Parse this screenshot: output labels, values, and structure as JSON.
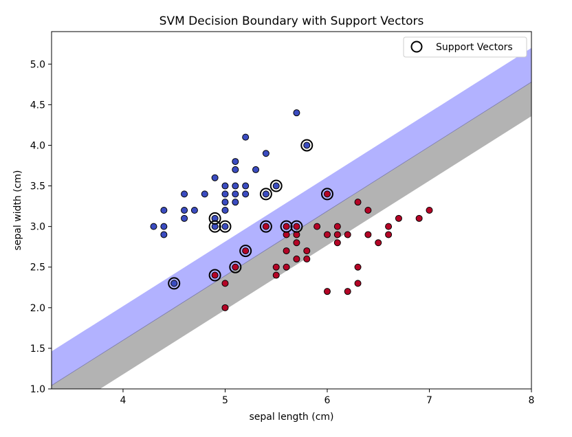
{
  "chart_data": {
    "type": "scatter",
    "title": "SVM Decision Boundary with Support Vectors",
    "xlabel": "sepal length (cm)",
    "ylabel": "sepal width (cm)",
    "xlim": [
      3.3,
      8.0
    ],
    "ylim": [
      1.0,
      5.4
    ],
    "xticks": [
      "4",
      "5",
      "6",
      "7",
      "8"
    ],
    "yticks": [
      "1.0",
      "1.5",
      "2.0",
      "2.5",
      "3.0",
      "3.5",
      "4.0",
      "4.5",
      "5.0"
    ],
    "grid": false,
    "legend": {
      "position": "top-right",
      "entries": [
        "Support Vectors"
      ]
    },
    "decision_regions": {
      "boundary_line": {
        "slope": 0.795,
        "intercept": -1.581
      },
      "margin_band_width": 0.42,
      "colors": {
        "class_0_margin": "#b2b2ff",
        "class_1_margin": "#b3b3b3",
        "background": "#ffffff"
      }
    },
    "colors": {
      "class_0": "#3b4cc0",
      "class_1": "#b40426",
      "edge": "#000000"
    },
    "series": [
      {
        "class": 0,
        "points": [
          [
            4.3,
            3.0
          ],
          [
            4.4,
            3.0
          ],
          [
            4.4,
            2.9
          ],
          [
            4.4,
            3.2
          ],
          [
            4.5,
            2.3
          ],
          [
            4.6,
            3.4
          ],
          [
            4.6,
            3.2
          ],
          [
            4.6,
            3.1
          ],
          [
            4.7,
            3.2
          ],
          [
            4.8,
            3.4
          ],
          [
            4.9,
            3.6
          ],
          [
            4.9,
            3.1
          ],
          [
            4.9,
            3.0
          ],
          [
            5.0,
            3.5
          ],
          [
            5.0,
            3.4
          ],
          [
            5.0,
            3.3
          ],
          [
            5.0,
            3.2
          ],
          [
            5.0,
            3.0
          ],
          [
            5.1,
            3.8
          ],
          [
            5.1,
            3.7
          ],
          [
            5.1,
            3.5
          ],
          [
            5.1,
            3.4
          ],
          [
            5.1,
            3.3
          ],
          [
            5.2,
            4.1
          ],
          [
            5.2,
            3.5
          ],
          [
            5.2,
            3.4
          ],
          [
            5.3,
            3.7
          ],
          [
            5.4,
            3.9
          ],
          [
            5.4,
            3.4
          ],
          [
            5.5,
            3.5
          ],
          [
            5.7,
            4.4
          ],
          [
            5.8,
            4.0
          ]
        ]
      },
      {
        "class": 1,
        "points": [
          [
            4.9,
            2.4
          ],
          [
            5.0,
            2.3
          ],
          [
            5.0,
            2.0
          ],
          [
            5.1,
            2.5
          ],
          [
            5.2,
            2.7
          ],
          [
            5.4,
            3.0
          ],
          [
            5.5,
            2.5
          ],
          [
            5.5,
            2.4
          ],
          [
            5.6,
            3.0
          ],
          [
            5.6,
            2.9
          ],
          [
            5.6,
            2.7
          ],
          [
            5.6,
            2.5
          ],
          [
            5.7,
            3.0
          ],
          [
            5.7,
            2.9
          ],
          [
            5.7,
            2.8
          ],
          [
            5.7,
            2.6
          ],
          [
            5.8,
            2.7
          ],
          [
            5.8,
            2.6
          ],
          [
            5.9,
            3.0
          ],
          [
            6.0,
            3.4
          ],
          [
            6.0,
            2.9
          ],
          [
            6.0,
            2.2
          ],
          [
            6.1,
            3.0
          ],
          [
            6.1,
            2.9
          ],
          [
            6.1,
            2.8
          ],
          [
            6.2,
            2.9
          ],
          [
            6.2,
            2.2
          ],
          [
            6.3,
            3.3
          ],
          [
            6.3,
            2.5
          ],
          [
            6.3,
            2.3
          ],
          [
            6.4,
            3.2
          ],
          [
            6.4,
            2.9
          ],
          [
            6.5,
            2.8
          ],
          [
            6.6,
            3.0
          ],
          [
            6.6,
            2.9
          ],
          [
            6.7,
            3.1
          ],
          [
            6.9,
            3.1
          ],
          [
            7.0,
            3.2
          ]
        ]
      }
    ],
    "support_vectors": [
      [
        4.5,
        2.3
      ],
      [
        4.9,
        3.1
      ],
      [
        4.9,
        3.0
      ],
      [
        5.0,
        3.0
      ],
      [
        5.4,
        3.4
      ],
      [
        5.5,
        3.5
      ],
      [
        5.8,
        4.0
      ],
      [
        4.9,
        2.4
      ],
      [
        5.1,
        2.5
      ],
      [
        5.2,
        2.7
      ],
      [
        5.4,
        3.0
      ],
      [
        5.6,
        3.0
      ],
      [
        5.7,
        3.0
      ],
      [
        6.0,
        3.4
      ]
    ]
  }
}
